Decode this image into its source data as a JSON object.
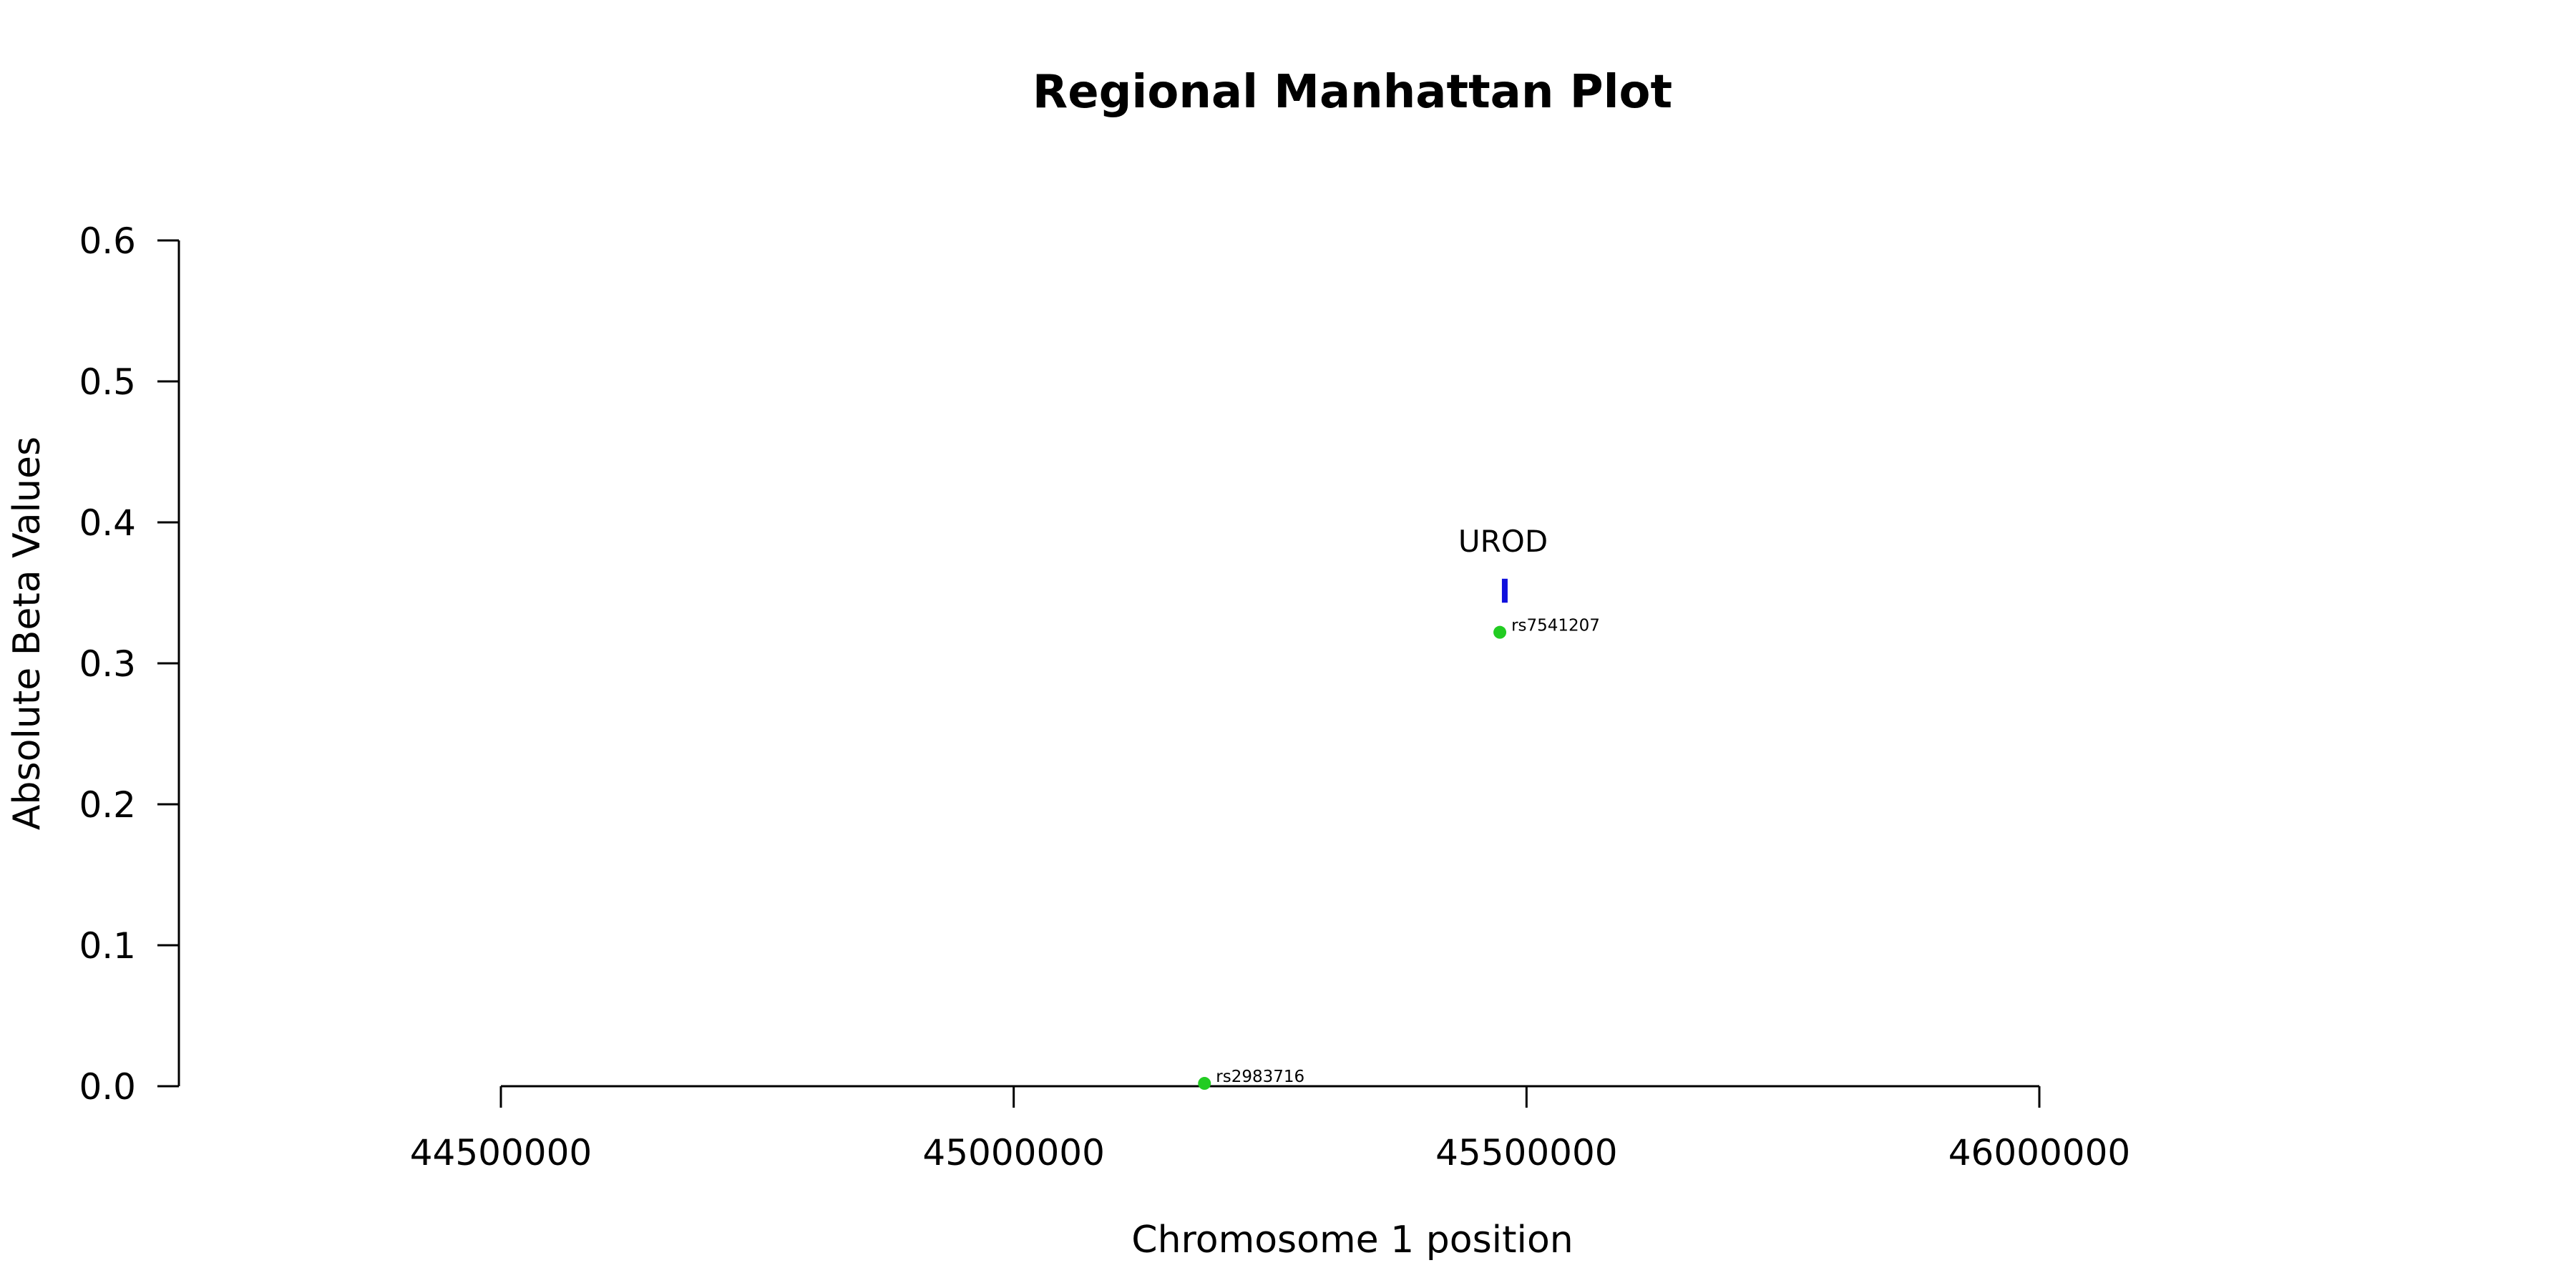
{
  "chart_data": {
    "type": "scatter",
    "title": "Regional Manhattan Plot",
    "xlabel": "Chromosome 1 position",
    "ylabel": "Absolute Beta Values",
    "xlim": [
      44500000,
      46000000
    ],
    "ylim": [
      0,
      0.6
    ],
    "x_ticks": [
      "44500000",
      "45000000",
      "45500000",
      "46000000"
    ],
    "y_ticks": [
      "0.0",
      "0.1",
      "0.2",
      "0.3",
      "0.4",
      "0.5",
      "0.6"
    ],
    "grid": false,
    "points": [
      {
        "label": "rs2983716",
        "x": 45186000,
        "y": 0.002,
        "color": "#22cc22"
      },
      {
        "label": "rs7541207",
        "x": 45474000,
        "y": 0.322,
        "color": "#22cc22"
      }
    ],
    "genes": [
      {
        "name": "UROD",
        "x_start": 45476000,
        "x_end": 45481000,
        "y_low": 0.343,
        "y_high": 0.36,
        "color": "#1010dd"
      }
    ]
  }
}
